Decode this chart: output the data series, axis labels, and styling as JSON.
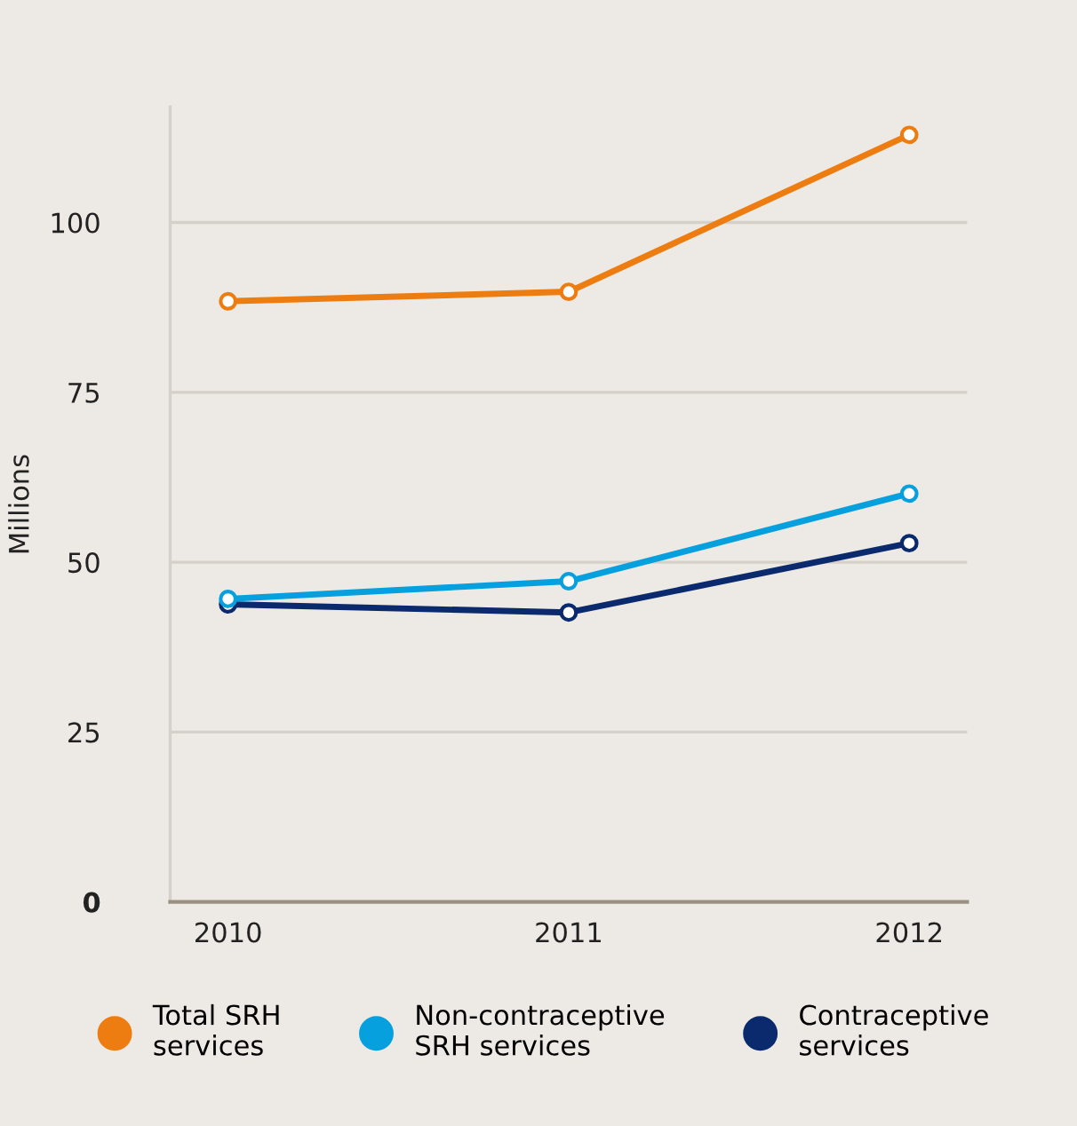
{
  "chart_data": {
    "type": "line",
    "ylabel": "Millions",
    "x": [
      2010,
      2011,
      2012
    ],
    "xlim": [
      2009.83,
      2012.17
    ],
    "xticks": [
      2010,
      2011,
      2012
    ],
    "ylim": [
      0,
      117
    ],
    "yticks": [
      0,
      25,
      50,
      75,
      100
    ],
    "series": [
      {
        "name": "Total SRH\nservices",
        "color": "#ee7d11",
        "values": [
          88.4,
          89.8,
          112.9
        ]
      },
      {
        "name": "Non-contraceptive\nSRH services",
        "color": "#06a0de",
        "values": [
          44.6,
          47.2,
          60.1
        ]
      },
      {
        "name": "Contraceptive\nservices",
        "color": "#0b2a6e",
        "values": [
          43.8,
          42.6,
          52.8
        ]
      }
    ],
    "marker": "circle",
    "line_style": "solid",
    "grid": "y",
    "legend": "bottom"
  }
}
